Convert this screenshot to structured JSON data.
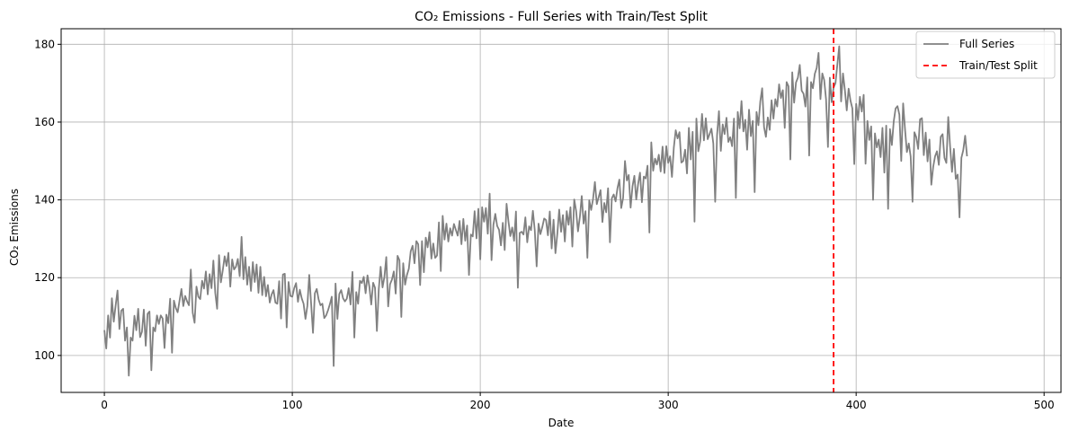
{
  "chart_data": {
    "type": "line",
    "title": "CO₂ Emissions - Full Series with Train/Test Split",
    "xlabel": "Date",
    "ylabel": "CO₂ Emissions",
    "xlim": [
      -23,
      509
    ],
    "ylim": [
      90.5,
      184
    ],
    "xticks": [
      0,
      100,
      200,
      300,
      400,
      500
    ],
    "yticks": [
      100,
      120,
      140,
      160,
      180
    ],
    "grid": true,
    "legend_position": "top-right",
    "split_index": 388,
    "colors": {
      "series": "#808080",
      "split": "#ff0000"
    },
    "series": [
      {
        "name": "Full Series",
        "x_start": 0,
        "x_step": 1,
        "values": [
          106.5,
          101.8,
          110.3,
          104.6,
          114.7,
          108.7,
          112.9,
          116.7,
          106.8,
          111.5,
          112.0,
          103.8,
          107.2,
          94.8,
          104.6,
          103.8,
          110.2,
          106.5,
          112.0,
          104.7,
          106.1,
          111.8,
          102.5,
          110.7,
          111.3,
          96.2,
          107.2,
          106.2,
          110.3,
          108.1,
          110.3,
          109.5,
          101.9,
          110.5,
          108.3,
          114.6,
          100.7,
          114.1,
          112.2,
          111.1,
          114.1,
          117.1,
          112.7,
          115.3,
          113.9,
          112.9,
          122.1,
          111.0,
          108.4,
          117.7,
          115.1,
          114.5,
          119.2,
          117.2,
          121.6,
          115.7,
          120.9,
          117.3,
          124.4,
          116.1,
          112.0,
          125.8,
          118.8,
          121.9,
          125.5,
          123.0,
          126.4,
          117.7,
          124.7,
          122.1,
          122.8,
          124.8,
          120.4,
          130.5,
          119.6,
          125.3,
          118.2,
          122.8,
          116.6,
          124.0,
          118.9,
          123.4,
          116.1,
          122.8,
          115.5,
          120.2,
          115.2,
          118.1,
          113.6,
          115.7,
          116.8,
          113.6,
          113.3,
          119.1,
          109.5,
          120.8,
          121.0,
          107.2,
          118.9,
          115.3,
          115.1,
          117.3,
          118.6,
          113.8,
          116.9,
          114.7,
          113.3,
          109.4,
          112.7,
          120.7,
          113.4,
          105.8,
          116.0,
          117.1,
          114.4,
          112.9,
          113.3,
          109.6,
          110.3,
          111.6,
          113.2,
          115.1,
          97.3,
          118.5,
          109.4,
          115.8,
          116.8,
          114.7,
          113.9,
          114.6,
          117.3,
          113.1,
          121.5,
          104.6,
          116.3,
          113.3,
          119.2,
          118.6,
          120.2,
          116.0,
          120.6,
          117.7,
          113.1,
          118.7,
          117.4,
          106.3,
          117.0,
          122.8,
          117.5,
          120.2,
          125.3,
          112.6,
          118.3,
          119.5,
          121.6,
          115.9,
          125.6,
          124.5,
          109.9,
          123.7,
          118.2,
          120.7,
          122.3,
          126.8,
          128.2,
          123.7,
          129.4,
          128.6,
          118.1,
          129.4,
          121.4,
          130.3,
          127.8,
          131.7,
          124.9,
          128.8,
          125.1,
          125.7,
          134.2,
          121.7,
          135.9,
          129.8,
          133.9,
          129.3,
          132.7,
          130.8,
          133.8,
          132.3,
          130.8,
          134.6,
          128.6,
          135.1,
          129.5,
          133.4,
          120.7,
          131.1,
          130.6,
          137.1,
          130.1,
          137.7,
          124.7,
          138.1,
          134.4,
          137.9,
          131.3,
          141.6,
          124.5,
          133.6,
          136.4,
          133.3,
          132.3,
          128.3,
          134.1,
          127.1,
          139.0,
          134.5,
          130.7,
          132.9,
          129.5,
          137.0,
          117.4,
          131.5,
          131.8,
          131.1,
          135.5,
          129.1,
          133.2,
          132.2,
          137.2,
          132.2,
          122.9,
          133.9,
          131.2,
          133.0,
          135.2,
          134.8,
          130.9,
          137.0,
          127.5,
          134.9,
          126.3,
          131.2,
          137.5,
          131.8,
          136.1,
          129.3,
          137.1,
          133.6,
          138.1,
          128.0,
          140.1,
          137.2,
          131.9,
          135.6,
          141.0,
          133.9,
          137.1,
          125.1,
          139.9,
          137.4,
          140.2,
          144.6,
          138.9,
          140.7,
          142.5,
          134.3,
          139.2,
          136.8,
          143.0,
          129.1,
          140.4,
          141.4,
          139.6,
          143.0,
          145.2,
          137.9,
          140.5,
          150.0,
          145.0,
          146.4,
          138.0,
          143.5,
          146.2,
          140.1,
          144.1,
          147.0,
          139.4,
          146.0,
          145.5,
          148.8,
          131.6,
          154.8,
          147.5,
          150.6,
          149.1,
          151.6,
          147.3,
          153.7,
          146.9,
          153.8,
          149.5,
          151.2,
          145.9,
          153.5,
          157.9,
          155.8,
          157.4,
          149.6,
          150.0,
          152.9,
          146.8,
          158.5,
          150.4,
          157.5,
          134.4,
          160.9,
          152.5,
          155.0,
          162.1,
          155.3,
          161.0,
          155.6,
          156.9,
          158.3,
          154.5,
          139.5,
          156.7,
          162.8,
          152.6,
          159.4,
          156.9,
          161.1,
          154.9,
          156.1,
          153.8,
          160.9,
          140.5,
          162.6,
          158.4,
          165.4,
          157.6,
          160.6,
          152.9,
          163.2,
          156.4,
          160.3,
          142.0,
          162.6,
          159.2,
          165.3,
          168.7,
          158.7,
          156.2,
          161.2,
          158.0,
          165.6,
          160.9,
          165.9,
          164.0,
          169.7,
          166.2,
          168.2,
          158.5,
          170.3,
          169.2,
          150.4,
          172.8,
          165.0,
          170.2,
          171.4,
          174.7,
          168.1,
          167.3,
          164.0,
          171.5,
          151.4,
          170.3,
          168.7,
          172.4,
          173.9,
          177.8,
          165.9,
          172.5,
          170.8,
          165.8,
          153.6,
          171.4,
          165.1,
          168.9,
          170.0,
          174.8,
          179.5,
          165.3,
          172.5,
          168.3,
          163.0,
          168.6,
          165.5,
          163.5,
          149.2,
          164.7,
          160.5,
          166.5,
          162.7,
          167.0,
          149.3,
          160.3,
          155.4,
          158.9,
          140.0,
          157.1,
          153.5,
          155.5,
          151.0,
          158.5,
          147.0,
          159.1,
          137.7,
          158.2,
          154.1,
          160.2,
          163.5,
          164.1,
          161.9,
          150.0,
          164.8,
          158.2,
          152.3,
          154.5,
          151.2,
          139.5,
          157.4,
          156.1,
          153.1,
          160.7,
          161.0,
          151.5,
          157.3,
          149.9,
          155.5,
          143.9,
          148.5,
          151.2,
          152.5,
          149.0,
          156.2,
          156.9,
          150.8,
          149.5,
          161.3,
          153.7,
          147.2,
          153.1,
          145.4,
          146.5,
          135.5,
          150.8,
          152.8,
          156.5,
          151.2
        ]
      }
    ],
    "markers": [
      {
        "name": "Train/Test Split",
        "x": 388,
        "style": "dashed"
      }
    ]
  }
}
